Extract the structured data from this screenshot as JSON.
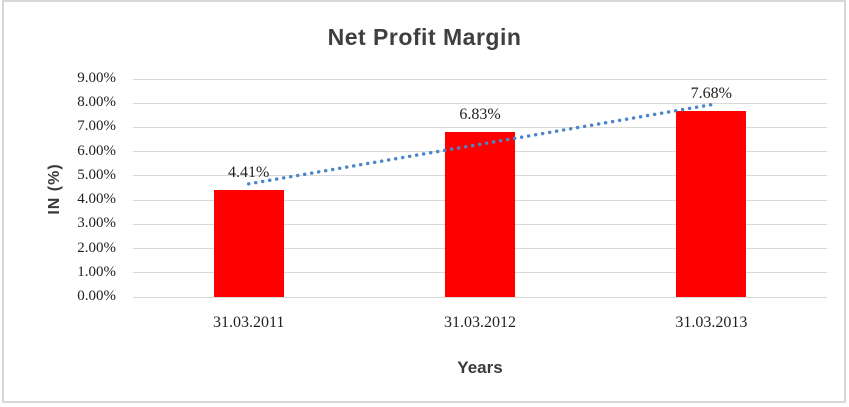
{
  "window": {
    "background": "#ffffff",
    "frame_border_color": "#d8d8d8"
  },
  "chart_data": {
    "type": "bar",
    "title": "Net Profit Margin",
    "xlabel": "Years",
    "ylabel": "IN (%)",
    "categories": [
      "31.03.2011",
      "31.03.2012",
      "31.03.2013"
    ],
    "series": [
      {
        "name": "Net Profit Margin",
        "values": [
          4.41,
          6.83,
          7.68
        ]
      }
    ],
    "data_labels": [
      "4.41%",
      "6.83%",
      "7.68%"
    ],
    "ylim": [
      0,
      9
    ],
    "ytick_step": 1,
    "ytick_labels": [
      "0.00%",
      "1.00%",
      "2.00%",
      "3.00%",
      "4.00%",
      "5.00%",
      "6.00%",
      "7.00%",
      "8.00%",
      "9.00%"
    ],
    "grid": true,
    "legend": "none",
    "bar_color": "#ff0000",
    "gridline_color": "#d9d9d9",
    "trendline": {
      "type": "linear",
      "style": "dotted",
      "color": "#4a86c8",
      "start_value": 4.67,
      "end_value": 7.94
    }
  }
}
